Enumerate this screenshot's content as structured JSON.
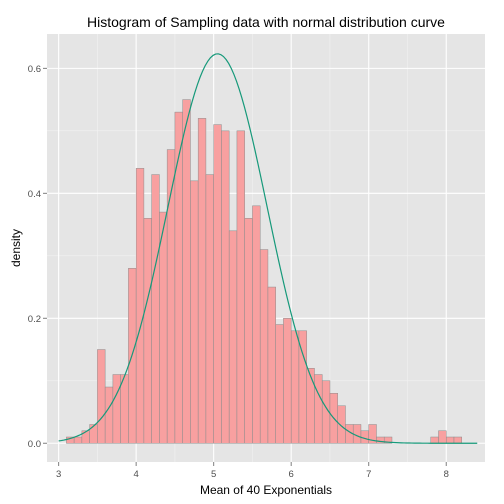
{
  "chart_data": {
    "type": "bar",
    "title": "Histogram of Sampling data with normal distribution curve",
    "xlabel": "Mean of 40 Exponentials",
    "ylabel": "density",
    "xlim": [
      2.85,
      8.5
    ],
    "ylim": [
      -0.03,
      0.655
    ],
    "xticks": [
      3,
      4,
      5,
      6,
      7,
      8
    ],
    "xtick_labels": [
      "3",
      "4",
      "5",
      "6",
      "7",
      "8"
    ],
    "yticks": [
      0.0,
      0.2,
      0.4,
      0.6
    ],
    "ytick_labels": [
      "0.0",
      "0.2",
      "0.4",
      "0.6"
    ],
    "grid": true,
    "bin_width": 0.1,
    "bins_start": [
      3.1,
      3.2,
      3.3,
      3.4,
      3.5,
      3.6,
      3.7,
      3.8,
      3.9,
      4.0,
      4.1,
      4.2,
      4.3,
      4.4,
      4.5,
      4.6,
      4.7,
      4.8,
      4.9,
      5.0,
      5.1,
      5.2,
      5.3,
      5.4,
      5.5,
      5.6,
      5.7,
      5.8,
      5.9,
      6.0,
      6.1,
      6.2,
      6.3,
      6.4,
      6.5,
      6.6,
      6.7,
      6.8,
      6.9,
      7.0,
      7.1,
      7.2,
      7.3,
      7.4,
      7.5,
      7.6,
      7.7,
      7.8,
      7.9,
      8.0,
      8.1,
      8.2
    ],
    "density": [
      0.01,
      0.01,
      0.02,
      0.03,
      0.15,
      0.09,
      0.11,
      0.11,
      0.28,
      0.44,
      0.36,
      0.43,
      0.37,
      0.47,
      0.53,
      0.55,
      0.42,
      0.52,
      0.43,
      0.51,
      0.5,
      0.34,
      0.5,
      0.36,
      0.38,
      0.31,
      0.25,
      0.19,
      0.2,
      0.18,
      0.18,
      0.12,
      0.11,
      0.1,
      0.08,
      0.06,
      0.03,
      0.03,
      0.02,
      0.03,
      0.01,
      0.01,
      0.0,
      0.0,
      0.0,
      0.0,
      0.0,
      0.01,
      0.02,
      0.01,
      0.01,
      0.0
    ],
    "curve": {
      "type": "normal",
      "mean": 5.05,
      "sd": 0.64,
      "x_range": [
        3.0,
        8.4
      ]
    },
    "colors": {
      "panel": "#e5e5e5",
      "grid_major": "#ffffff",
      "grid_minor": "#f2f2f2",
      "bar_fill": "#f8a0a0",
      "bar_stroke": "#8c8c8c",
      "curve": "#16997a"
    }
  }
}
